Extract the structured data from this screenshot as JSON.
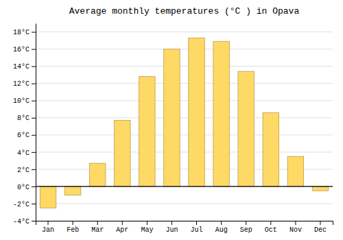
{
  "chart_data": {
    "type": "bar",
    "title": "Average monthly temperatures (°C ) in Opava",
    "categories": [
      "Jan",
      "Feb",
      "Mar",
      "Apr",
      "May",
      "Jun",
      "Jul",
      "Aug",
      "Sep",
      "Oct",
      "Nov",
      "Dec"
    ],
    "values": [
      -2.5,
      -1.0,
      2.7,
      7.7,
      12.8,
      16.0,
      17.3,
      16.9,
      13.4,
      8.6,
      3.5,
      -0.5
    ],
    "color": "#FFD966",
    "ylim": [
      -4,
      19
    ],
    "yticks": [
      {
        "value": -4,
        "label": "-4°C"
      },
      {
        "value": -2,
        "label": "-2°C"
      },
      {
        "value": 0,
        "label": "0°C"
      },
      {
        "value": 2,
        "label": "2°C"
      },
      {
        "value": 4,
        "label": "4°C"
      },
      {
        "value": 6,
        "label": "6°C"
      },
      {
        "value": 8,
        "label": "8°C"
      },
      {
        "value": 10,
        "label": "10°C"
      },
      {
        "value": 12,
        "label": "12°C"
      },
      {
        "value": 14,
        "label": "14°C"
      },
      {
        "value": 16,
        "label": "16°C"
      },
      {
        "value": 18,
        "label": "18°C"
      }
    ],
    "grid": true
  }
}
